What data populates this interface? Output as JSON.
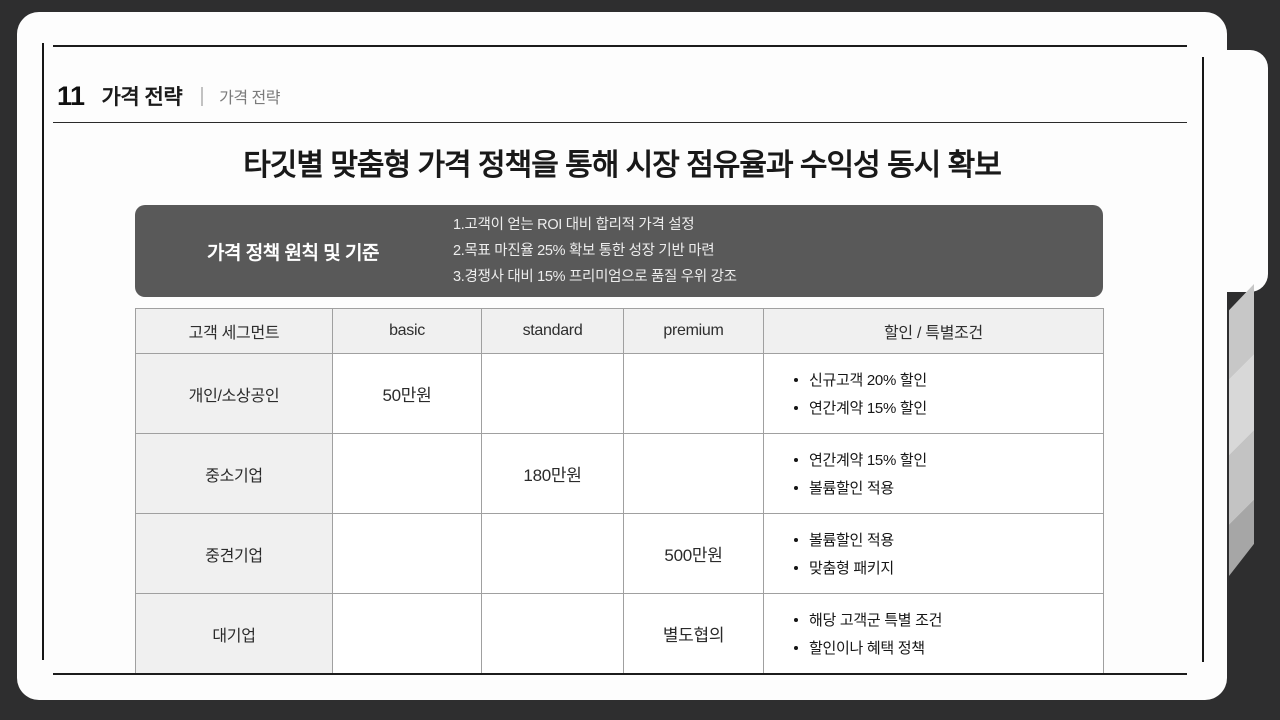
{
  "slide": {
    "number": "11",
    "section_title": "가격 전략",
    "section_subtitle": "가격 전략",
    "title": "타깃별 맞춤형 가격 정책을 통해 시장 점유율과 수익성 동시 확보"
  },
  "principles_box": {
    "label": "가격 정책 원칙 및 기준",
    "items": [
      "1.고객이 얻는 ROI 대비 합리적 가격 설정",
      "2.목표 마진율 25% 확보 통한 성장 기반 마련",
      "3.경쟁사 대비 15% 프리미엄으로 품질 우위 강조"
    ]
  },
  "pricing_table": {
    "columns": [
      "고객 세그먼트",
      "basic",
      "standard",
      "premium",
      "할인 / 특별조건"
    ],
    "rows": [
      {
        "segment": "개인/소상공인",
        "basic": "50만원",
        "standard": "",
        "premium": "",
        "benefits": [
          "신규고객 20% 할인",
          "연간계약 15% 할인"
        ]
      },
      {
        "segment": "중소기업",
        "basic": "",
        "standard": "180만원",
        "premium": "",
        "benefits": [
          "연간계약 15% 할인",
          "볼륨할인 적용"
        ]
      },
      {
        "segment": "중견기업",
        "basic": "",
        "standard": "",
        "premium": "500만원",
        "benefits": [
          "볼륨할인 적용",
          "맞춤형 패키지"
        ]
      },
      {
        "segment": "대기업",
        "basic": "",
        "standard": "",
        "premium": "별도협의",
        "benefits": [
          "해당 고객군 특별 조건",
          "할인이나 혜택 정책"
        ]
      }
    ]
  },
  "colors": {
    "background": "#2e2e2f",
    "card": "#fdfdfd",
    "principles_box": "#595959",
    "table_border": "#a0a0a0",
    "table_header_bg": "#f0f0f0",
    "text_dark": "#222222",
    "text_muted": "#7b7b7b"
  }
}
